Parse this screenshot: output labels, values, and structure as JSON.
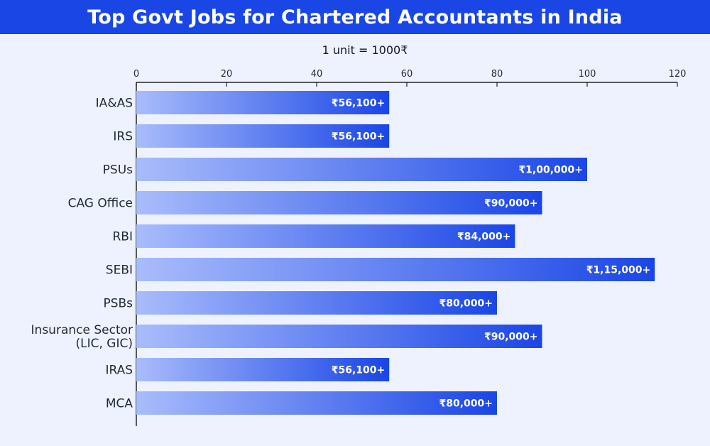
{
  "title": "Top Govt Jobs for Chartered Accountants in India",
  "unit_note": "1 unit = 1000₹",
  "colors": {
    "header_bg": "#1a46e6",
    "background": "#eef2fe",
    "bar_start": "#a9bcfb",
    "bar_end": "#1a46e6"
  },
  "chart_data": {
    "type": "bar",
    "orientation": "horizontal",
    "categories": [
      [
        "IA&AS"
      ],
      [
        "IRS"
      ],
      [
        "PSUs"
      ],
      [
        "CAG Office"
      ],
      [
        "RBI"
      ],
      [
        "SEBI"
      ],
      [
        "PSBs"
      ],
      [
        "Insurance Sector",
        "(LIC, GIC)"
      ],
      [
        "IRAS"
      ],
      [
        "MCA"
      ]
    ],
    "values": [
      56.1,
      56.1,
      100,
      90,
      84,
      115,
      80,
      90,
      56.1,
      80
    ],
    "data_labels": [
      "₹56,100+",
      "₹56,100+",
      "₹1,00,000+",
      "₹90,000+",
      "₹84,000+",
      "₹1,15,000+",
      "₹80,000+",
      "₹90,000+",
      "₹56,100+",
      "₹80,000+"
    ],
    "xlim": [
      0,
      120
    ],
    "xticks": [
      0,
      20,
      40,
      60,
      80,
      100,
      120
    ],
    "x_axis_position": "top",
    "grid": false
  }
}
